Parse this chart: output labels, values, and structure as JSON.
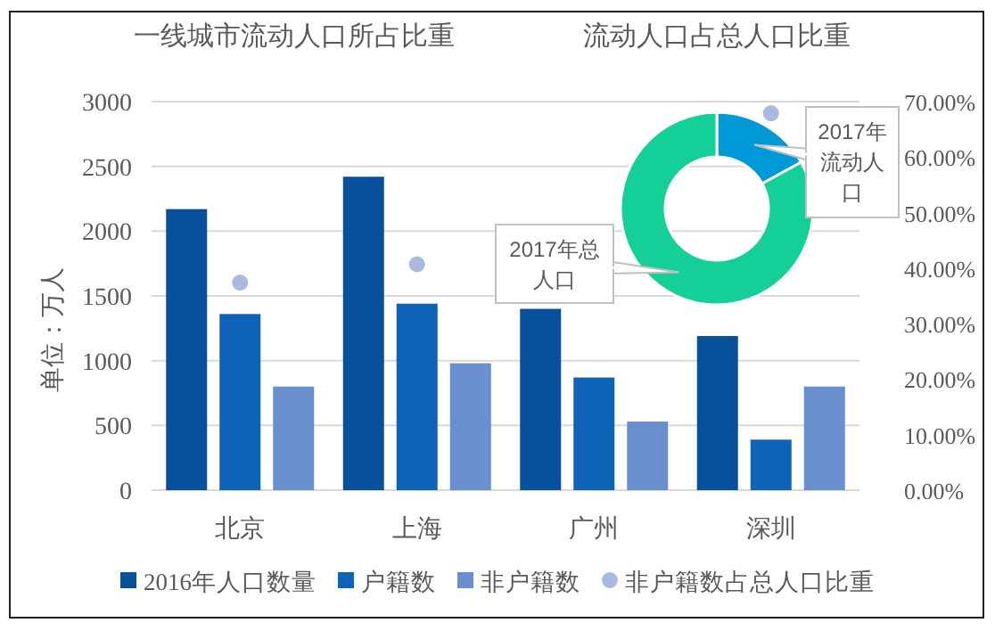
{
  "chart_data": [
    {
      "type": "bar",
      "title": "一线城市流动人口所占比重",
      "ylabel": "单位：万人",
      "categories": [
        "北京",
        "上海",
        "广州",
        "深圳"
      ],
      "series": [
        {
          "name": "2016年人口数量",
          "color": "#08519a",
          "values": [
            2170,
            2420,
            1400,
            1190
          ]
        },
        {
          "name": "户籍数",
          "color": "#0f63b6",
          "values": [
            1360,
            1440,
            870,
            390
          ]
        },
        {
          "name": "非户籍数",
          "color": "#6a8fcf",
          "values": [
            800,
            980,
            530,
            800
          ]
        },
        {
          "name": "非户籍数占总人口比重",
          "type": "scatter",
          "axis": "y2",
          "color": "#a9b9e0",
          "values": [
            37.4,
            40.7,
            null,
            67.9
          ]
        }
      ],
      "ylim": [
        0,
        3000
      ],
      "yticks": [
        0,
        500,
        1000,
        1500,
        2000,
        2500,
        3000
      ],
      "y2lim": [
        0,
        70
      ],
      "y2ticks": [
        {
          "value": 0,
          "label": "0.00%"
        },
        {
          "value": 10,
          "label": "10.00%"
        },
        {
          "value": 20,
          "label": "20.00%"
        },
        {
          "value": 30,
          "label": "30.00%"
        },
        {
          "value": 40,
          "label": "40.00%"
        },
        {
          "value": 50,
          "label": "50.00%"
        },
        {
          "value": 60,
          "label": "60.00%"
        },
        {
          "value": 70,
          "label": "70.00%"
        }
      ],
      "grid": "y",
      "legend": "bottom",
      "marker": "circle"
    },
    {
      "type": "donut",
      "title": "流动人口占总人口比重",
      "categories": [
        "2017年流动人口",
        "2017年总人口"
      ],
      "values": [
        17,
        83
      ],
      "colors": [
        "#0099d8",
        "#14cf98"
      ]
    }
  ]
}
